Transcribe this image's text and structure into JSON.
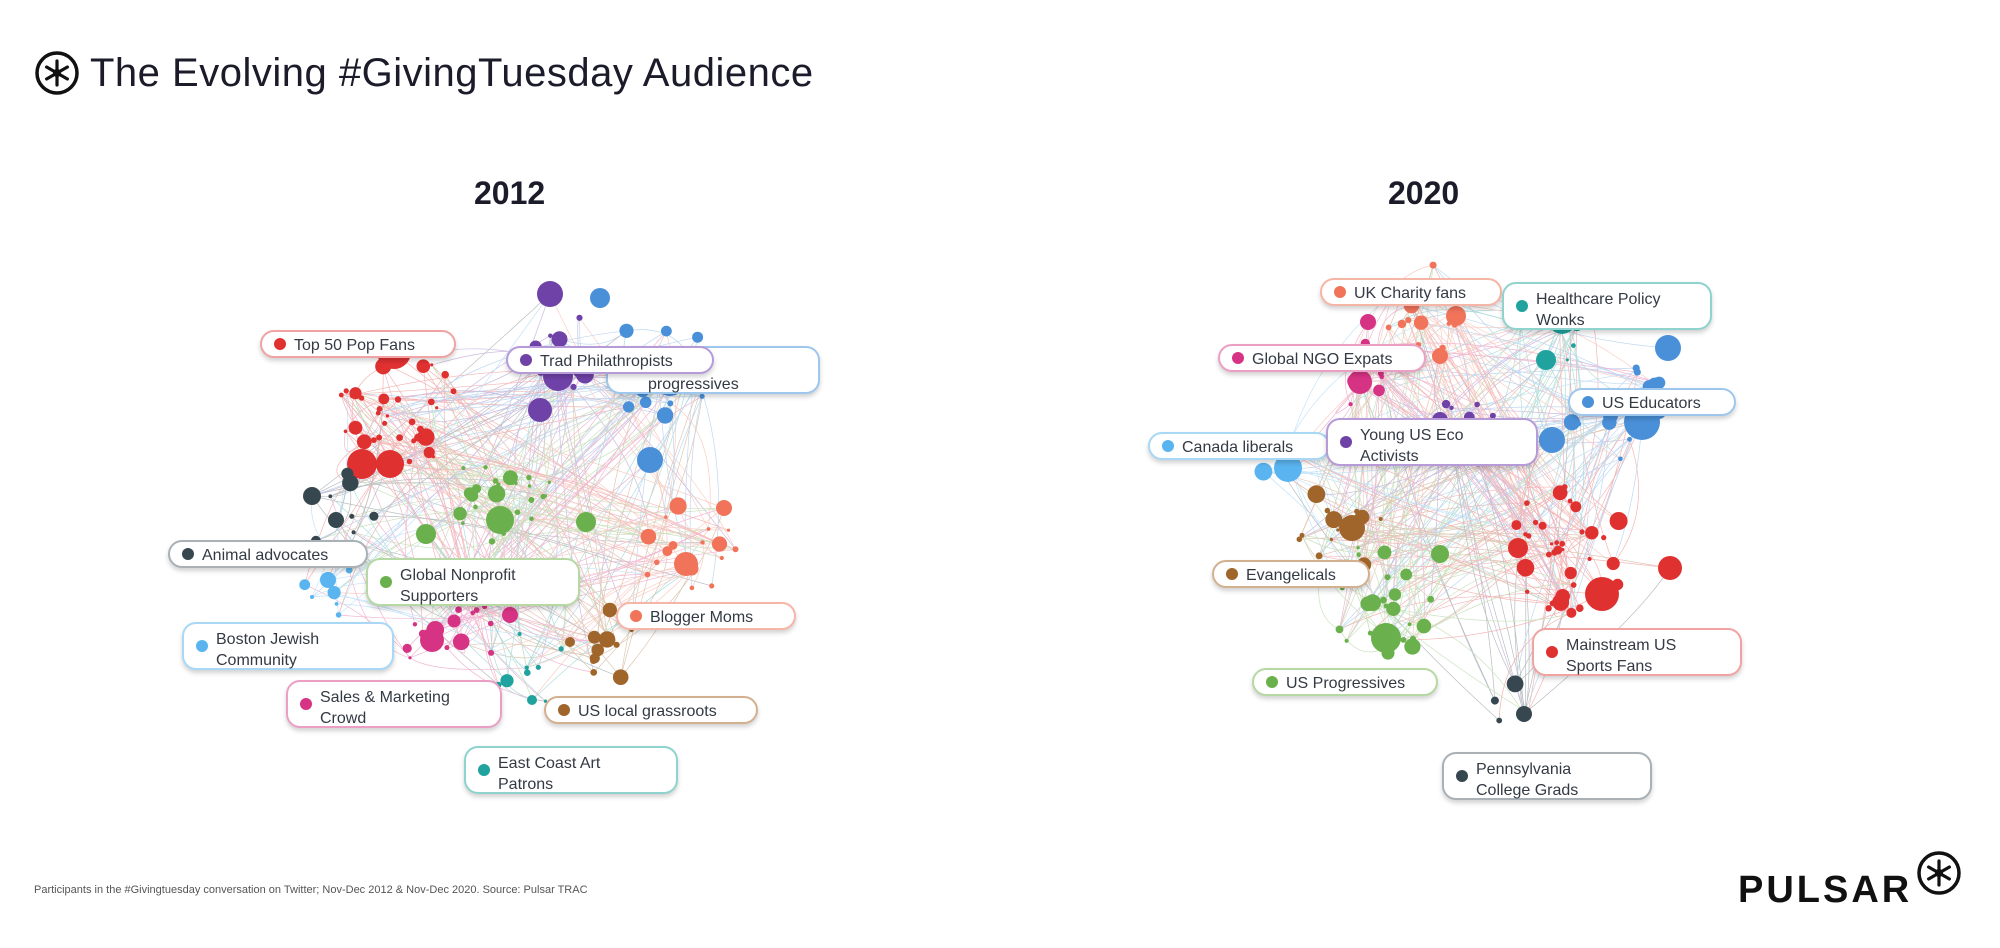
{
  "header": {
    "title": "The Evolving #GivingTuesday Audience",
    "logo_icon": "pulsar-asterisk-icon"
  },
  "panels": [
    {
      "year": "2012",
      "labels": [
        {
          "text": "Top 50 Pop Fans",
          "color": "#e03131"
        },
        {
          "text": "Trad Philathropists",
          "color": "#6f42a8"
        },
        {
          "text": "MSNBC\nprogressives",
          "color": "#4a90d9"
        },
        {
          "text": "Animal advocates",
          "color": "#37474f"
        },
        {
          "text": "Global Nonprofit\nSupporters",
          "color": "#6ab04c"
        },
        {
          "text": "Blogger Moms",
          "color": "#f0735a"
        },
        {
          "text": "Boston Jewish\nCommunity",
          "color": "#5ab4f0"
        },
        {
          "text": "Sales & Marketing\nCrowd",
          "color": "#d63384"
        },
        {
          "text": "US local grassroots",
          "color": "#a0652a"
        },
        {
          "text": "East Coast Art\nPatrons",
          "color": "#20a39e"
        }
      ]
    },
    {
      "year": "2020",
      "labels": [
        {
          "text": "UK Charity fans",
          "color": "#f0735a"
        },
        {
          "text": "Healthcare Policy\nWonks",
          "color": "#20a39e"
        },
        {
          "text": "Global NGO Expats",
          "color": "#d63384"
        },
        {
          "text": "US Educators",
          "color": "#4a90d9"
        },
        {
          "text": "Canada liberals",
          "color": "#5ab4f0"
        },
        {
          "text": "Young US Eco\nActivists",
          "color": "#6f42a8"
        },
        {
          "text": "Evangelicals",
          "color": "#a0652a"
        },
        {
          "text": "Mainstream US\nSports Fans",
          "color": "#e03131"
        },
        {
          "text": "US Progressives",
          "color": "#6ab04c"
        },
        {
          "text": "Pennsylvania\nCollege Grads",
          "color": "#37474f"
        }
      ]
    }
  ],
  "footer": {
    "source_note": "Participants in the #Givingtuesday conversation on Twitter; Nov-Dec 2012 & Nov-Dec 2020. Source: Pulsar TRAC",
    "brand": "PULSAR",
    "brand_icon": "pulsar-asterisk-icon"
  }
}
